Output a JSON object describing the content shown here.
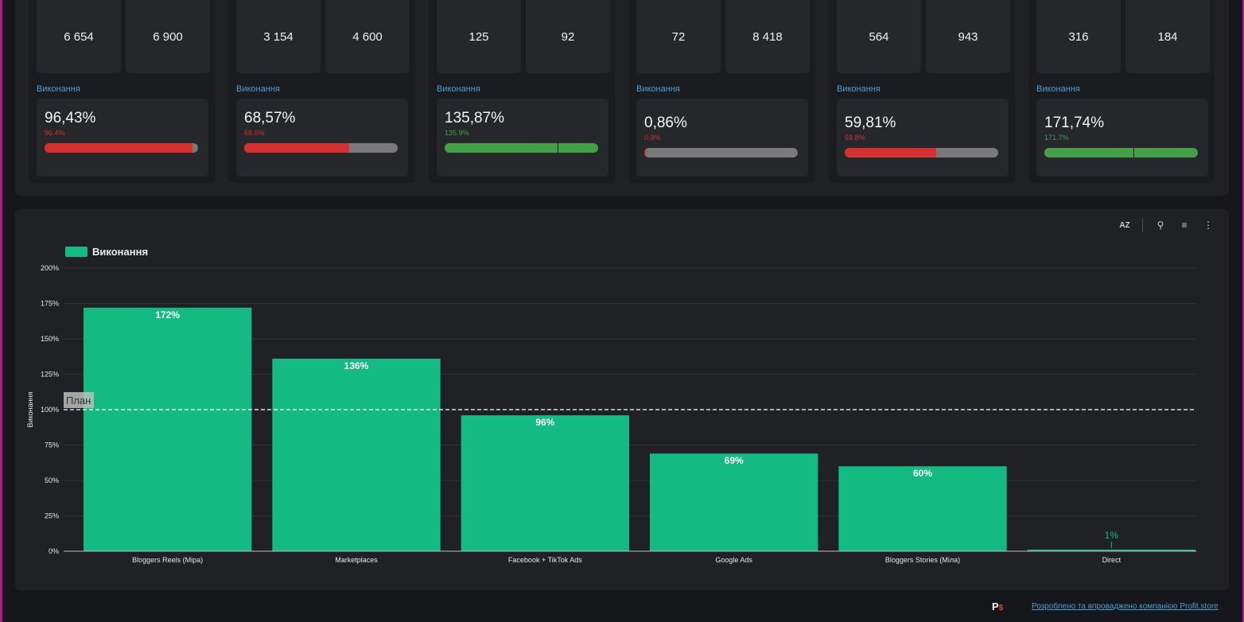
{
  "kpi_cards": [
    {
      "fact": "6 654",
      "plan": "6 900",
      "exec_label": "Виконання",
      "pct": "96,43%",
      "pct_small": "96.4%",
      "fill": 0.964,
      "status": "red"
    },
    {
      "fact": "3 154",
      "plan": "4 600",
      "exec_label": "Виконання",
      "pct": "68,57%",
      "pct_small": "68.6%",
      "fill": 0.686,
      "status": "red"
    },
    {
      "fact": "125",
      "plan": "92",
      "exec_label": "Виконання",
      "pct": "135,87%",
      "pct_small": "135.9%",
      "fill": 1.359,
      "status": "green"
    },
    {
      "fact": "72",
      "plan": "8 418",
      "exec_label": "Виконання",
      "pct": "0,86%",
      "pct_small": "0.9%",
      "fill": 0.009,
      "status": "red"
    },
    {
      "fact": "564",
      "plan": "943",
      "exec_label": "Виконання",
      "pct": "59,81%",
      "pct_small": "59.8%",
      "fill": 0.598,
      "status": "red"
    },
    {
      "fact": "316",
      "plan": "184",
      "exec_label": "Виконання",
      "pct": "171,74%",
      "pct_small": "171.7%",
      "fill": 1.717,
      "status": "green"
    }
  ],
  "colors": {
    "red": "#d63031",
    "green": "#43a047",
    "bar": "#13bb83",
    "grid": "#27353a",
    "plan_line": "#ffffff"
  },
  "toolbar": {
    "sort_label": "AZ",
    "zoom_icon": "zoom-icon",
    "filter_icon": "filter-icon",
    "more_icon": "more-vert-icon"
  },
  "chart_data": {
    "type": "bar",
    "legend": "Виконання",
    "legend_position": "top-left",
    "ylabel": "Виконання",
    "ylim": [
      0,
      200
    ],
    "y_ticks": [
      "0%",
      "25%",
      "50%",
      "75%",
      "100%",
      "125%",
      "150%",
      "175%",
      "200%"
    ],
    "grid": true,
    "categories": [
      "Bloggers Reels (Міра)",
      "Marketplaces",
      "Facebook + TikTok Ads",
      "Google Ads",
      "Bloggers Stories (Міла)",
      "Direct"
    ],
    "values": [
      172,
      136,
      96,
      69,
      60,
      1
    ],
    "data_labels": [
      "172%",
      "136%",
      "96%",
      "69%",
      "60%",
      "1%"
    ],
    "reference_line": {
      "value": 100,
      "label": "План"
    }
  },
  "footer": {
    "logo": "P",
    "logo_accent": "$",
    "link": "Розроблено та впроваджено компанією Profit.store"
  }
}
